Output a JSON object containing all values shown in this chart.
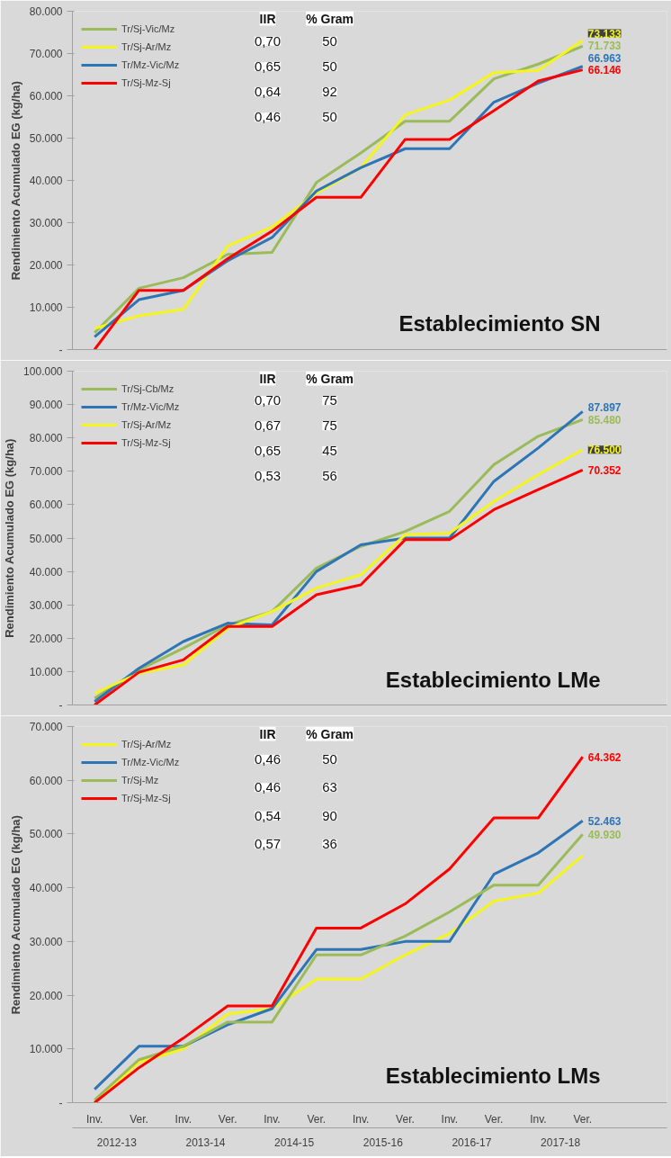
{
  "chart_data": [
    {
      "type": "line",
      "title": "Establecimiento SN",
      "ylabel": "Rendimiento Acumulado EG (kg/ha)",
      "categories": [
        null,
        null,
        null,
        null,
        null,
        null,
        null,
        null,
        null,
        null,
        null,
        null
      ],
      "ylim": [
        0,
        80000
      ],
      "yticks": [
        {
          "value": 0,
          "label": "-"
        },
        {
          "value": 10000,
          "label": "10.000"
        },
        {
          "value": 20000,
          "label": "20.000"
        },
        {
          "value": 30000,
          "label": "30.000"
        },
        {
          "value": 40000,
          "label": "40.000"
        },
        {
          "value": 50000,
          "label": "50.000"
        },
        {
          "value": 60000,
          "label": "60.000"
        },
        {
          "value": 70000,
          "label": "70.000"
        },
        {
          "value": 80000,
          "label": "80.000"
        }
      ],
      "legend": "top left",
      "grid": false,
      "marker": "none",
      "line_style": "solid",
      "annotations": [
        "IIR",
        "% Gram",
        "0,70",
        "50",
        "0,65",
        "50",
        "0,64",
        "92",
        "0,46",
        "50"
      ],
      "series": [
        {
          "name": "Tr/Sj-Vic/Mz",
          "color": "#9bbb59",
          "values": [
            4000,
            14500,
            17000,
            22500,
            23000,
            39500,
            46500,
            54000,
            54000,
            64000,
            67500,
            71733
          ],
          "value_labels": [
            null,
            null,
            null,
            null,
            null,
            null,
            null,
            null,
            null,
            null,
            null,
            "71.733"
          ]
        },
        {
          "name": "Tr/Sj-Ar/Mz",
          "color": "#f5f51e",
          "values": [
            5000,
            8000,
            9500,
            24500,
            29000,
            37000,
            43000,
            55500,
            59000,
            65500,
            66000,
            73133
          ],
          "value_labels": [
            null,
            null,
            null,
            null,
            null,
            null,
            null,
            null,
            null,
            null,
            null,
            "73.133"
          ]
        },
        {
          "name": "Tr/Mz-Vic/Mz",
          "color": "#2e75b6",
          "values": [
            3000,
            11800,
            14000,
            21000,
            26500,
            37500,
            43000,
            47500,
            47500,
            58500,
            63000,
            66963
          ],
          "value_labels": [
            null,
            null,
            null,
            null,
            null,
            null,
            null,
            null,
            null,
            null,
            null,
            "66.963"
          ]
        },
        {
          "name": "Tr/Sj-Mz-Sj",
          "color": "#ff0000",
          "values": [
            0,
            14000,
            14000,
            21500,
            28000,
            36000,
            36000,
            49700,
            49700,
            56500,
            63500,
            66146
          ],
          "value_labels": [
            null,
            null,
            null,
            null,
            null,
            null,
            null,
            null,
            null,
            null,
            null,
            "66.146"
          ]
        }
      ]
    },
    {
      "type": "line",
      "title": "Establecimiento LMe",
      "ylabel": "Rendimiento Acumulado EG (kg/ha)",
      "categories": [
        null,
        null,
        null,
        null,
        null,
        null,
        null,
        null,
        null,
        null,
        null,
        null
      ],
      "ylim": [
        0,
        100000
      ],
      "yticks": [
        {
          "value": 0,
          "label": "-"
        },
        {
          "value": 10000,
          "label": "10.000"
        },
        {
          "value": 20000,
          "label": "20.000"
        },
        {
          "value": 30000,
          "label": "30.000"
        },
        {
          "value": 40000,
          "label": "40.000"
        },
        {
          "value": 50000,
          "label": "50.000"
        },
        {
          "value": 60000,
          "label": "60.000"
        },
        {
          "value": 70000,
          "label": "70.000"
        },
        {
          "value": 80000,
          "label": "80.000"
        },
        {
          "value": 90000,
          "label": "90.000"
        },
        {
          "value": 100000,
          "label": "100.000"
        }
      ],
      "legend": "top left",
      "grid": false,
      "marker": "none",
      "line_style": "solid",
      "annotations": [
        "IIR",
        "% Gram",
        "0,70",
        "75",
        "0,67",
        "75",
        "0,65",
        "45",
        "0,53",
        "56"
      ],
      "series": [
        {
          "name": "Tr/Sj-Cb/Mz",
          "color": "#9bbb59",
          "values": [
            2000,
            10500,
            17000,
            24000,
            28000,
            41000,
            47500,
            52000,
            58000,
            72000,
            80500,
            85480
          ],
          "value_labels": [
            null,
            null,
            null,
            null,
            null,
            null,
            null,
            null,
            null,
            null,
            null,
            "85.480"
          ]
        },
        {
          "name": "Tr/Mz-Vic/Mz",
          "color": "#2e75b6",
          "values": [
            1000,
            11000,
            19000,
            24500,
            24000,
            40000,
            48000,
            50000,
            50000,
            67000,
            77000,
            87897
          ],
          "value_labels": [
            null,
            null,
            null,
            null,
            null,
            null,
            null,
            null,
            null,
            null,
            null,
            "87.897"
          ]
        },
        {
          "name": "Tr/Sj-Ar/Mz",
          "color": "#f5f51e",
          "values": [
            3500,
            9500,
            12000,
            23000,
            28000,
            35000,
            39000,
            51000,
            51500,
            61000,
            69000,
            76500
          ],
          "value_labels": [
            null,
            null,
            null,
            null,
            null,
            null,
            null,
            null,
            null,
            null,
            null,
            "76.500"
          ]
        },
        {
          "name": "Tr/Sj-Mz-Sj",
          "color": "#ff0000",
          "values": [
            0,
            9800,
            13500,
            23500,
            23500,
            33000,
            36000,
            49500,
            49500,
            58500,
            64500,
            70352
          ],
          "value_labels": [
            null,
            null,
            null,
            null,
            null,
            null,
            null,
            null,
            null,
            null,
            null,
            "70.352"
          ]
        }
      ]
    },
    {
      "type": "line",
      "title": "Establecimiento LMs",
      "ylabel": "Rendimiento Acumulado EG (kg/ha)",
      "categories": [
        "Inv.",
        "Ver.",
        "Inv.",
        "Ver.",
        "Inv.",
        "Ver.",
        "Inv.",
        "Ver.",
        "Inv.",
        "Ver.",
        "Inv.",
        "Ver."
      ],
      "ylim": [
        0,
        70000
      ],
      "yticks": [
        {
          "value": 0,
          "label": "-"
        },
        {
          "value": 10000,
          "label": "10.000"
        },
        {
          "value": 20000,
          "label": "20.000"
        },
        {
          "value": 30000,
          "label": "30.000"
        },
        {
          "value": 40000,
          "label": "40.000"
        },
        {
          "value": 50000,
          "label": "50.000"
        },
        {
          "value": 60000,
          "label": "60.000"
        },
        {
          "value": 70000,
          "label": "70.000"
        }
      ],
      "legend": "top left",
      "grid": false,
      "marker": "none",
      "line_style": "solid",
      "annotations": [
        "IIR",
        "% Gram",
        "0,46",
        "50",
        "0,46",
        "63",
        "0,54",
        "90",
        "0,57",
        "36",
        "2012-13",
        "2013-14",
        "2014-15",
        "2015-16",
        "2016-17",
        "2017-18"
      ],
      "series": [
        {
          "name": "Tr/Sj-Ar/Mz",
          "color": "#f5f51e",
          "values": [
            0,
            7500,
            10000,
            16500,
            17500,
            23000,
            23000,
            27500,
            31500,
            37500,
            39000,
            46000
          ]
        },
        {
          "name": "Tr/Mz-Vic/Mz",
          "color": "#2e75b6",
          "values": [
            2500,
            10500,
            10500,
            14500,
            17500,
            28500,
            28500,
            30000,
            30000,
            42500,
            46500,
            52463
          ],
          "value_labels": [
            null,
            null,
            null,
            null,
            null,
            null,
            null,
            null,
            null,
            null,
            null,
            "52.463"
          ]
        },
        {
          "name": "Tr/Sj-Mz",
          "color": "#9bbb59",
          "values": [
            500,
            8000,
            10500,
            15000,
            15000,
            27500,
            27500,
            31000,
            35500,
            40500,
            40500,
            49930
          ],
          "value_labels": [
            null,
            null,
            null,
            null,
            null,
            null,
            null,
            null,
            null,
            null,
            null,
            "49.930"
          ]
        },
        {
          "name": "Tr/Sj-Mz-Sj",
          "color": "#ff0000",
          "values": [
            0,
            6500,
            12000,
            18000,
            18000,
            32500,
            32500,
            37000,
            43500,
            53000,
            53000,
            64362
          ],
          "value_labels": [
            null,
            null,
            null,
            null,
            null,
            null,
            null,
            null,
            null,
            null,
            null,
            "64.362"
          ]
        }
      ]
    }
  ]
}
